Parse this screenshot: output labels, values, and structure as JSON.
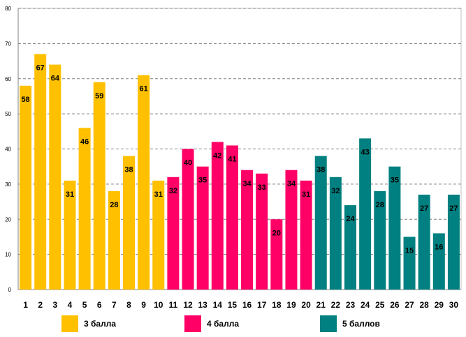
{
  "chart_data": {
    "type": "bar",
    "categories": [
      "1",
      "2",
      "3",
      "4",
      "5",
      "6",
      "7",
      "8",
      "9",
      "10",
      "11",
      "12",
      "13",
      "14",
      "15",
      "16",
      "17",
      "18",
      "19",
      "20",
      "21",
      "22",
      "23",
      "24",
      "25",
      "26",
      "27",
      "28",
      "29",
      "30"
    ],
    "values": [
      58,
      67,
      64,
      31,
      46,
      59,
      28,
      38,
      61,
      31,
      32,
      40,
      35,
      42,
      41,
      34,
      33,
      20,
      34,
      31,
      38,
      32,
      24,
      43,
      28,
      35,
      15,
      27,
      16,
      27
    ],
    "groups": [
      {
        "name": "3 балла",
        "color": "#FFC000",
        "from": 0,
        "to": 9
      },
      {
        "name": "4 балла",
        "color": "#FF0066",
        "from": 10,
        "to": 19
      },
      {
        "name": "5 баллов",
        "color": "#008080",
        "from": 20,
        "to": 29
      }
    ],
    "ylim": [
      0,
      80
    ],
    "yticks": [
      "0",
      "10",
      "20",
      "30",
      "40",
      "50",
      "60",
      "70",
      "80"
    ],
    "grid": true,
    "legend_position": "bottom"
  }
}
